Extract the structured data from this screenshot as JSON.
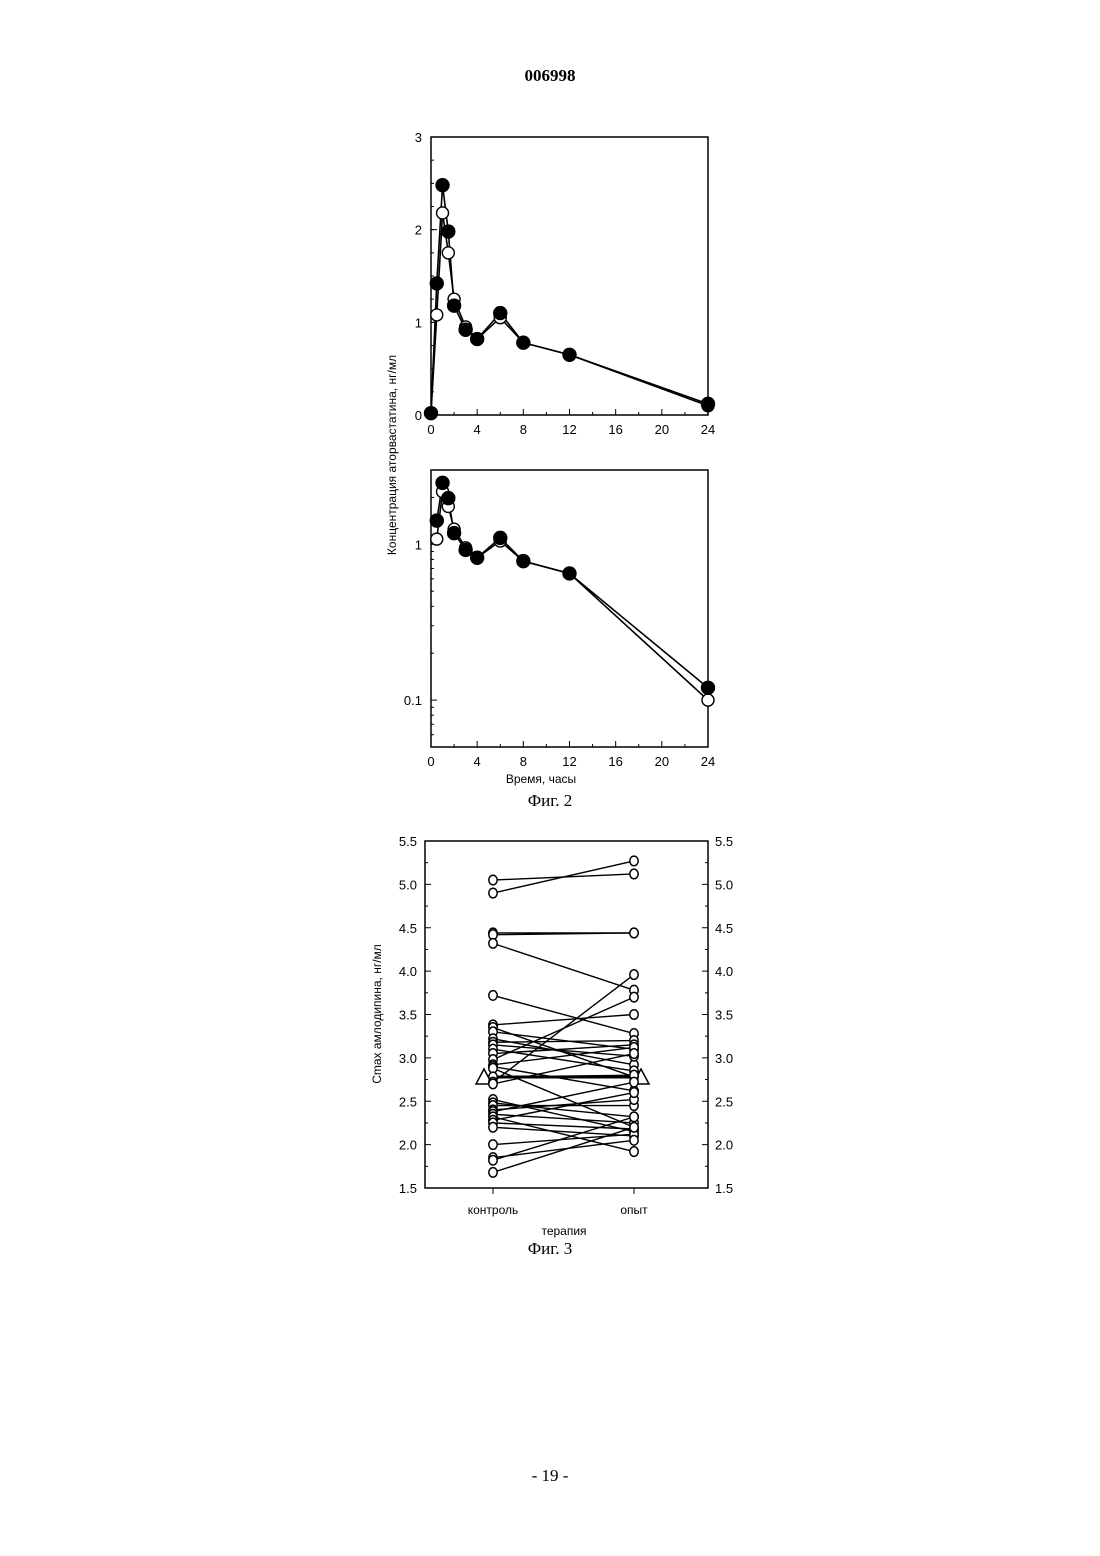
{
  "header": {
    "doc_number": "006998"
  },
  "footer": {
    "page_label": "- 19 -"
  },
  "figure2": {
    "caption": "Фиг. 2",
    "ylabel": "Концентрация аторвастатина, нг/мл",
    "xlabel": "Время, часы"
  },
  "figure3": {
    "caption": "Фиг. 3",
    "ylabel": "Cmax амлодипина, нг/мл",
    "xlabel": "терапия"
  },
  "chart_data": [
    {
      "type": "line",
      "scale": "linear",
      "xlabel": "",
      "ylabel": "Концентрация аторвастатина, нг/мл",
      "xlim": [
        0,
        24
      ],
      "ylim": [
        0,
        3
      ],
      "xticks": [
        0,
        4,
        8,
        12,
        16,
        20,
        24
      ],
      "yticks": [
        0,
        1,
        2,
        3
      ],
      "x": [
        0,
        0.5,
        1,
        1.5,
        2,
        3,
        4,
        6,
        8,
        12,
        24
      ],
      "series": [
        {
          "marker": "filled-circle",
          "values": [
            0.02,
            1.42,
            2.48,
            1.98,
            1.18,
            0.92,
            0.82,
            1.1,
            0.78,
            0.65,
            0.12
          ]
        },
        {
          "marker": "open-circle",
          "values": [
            0.02,
            1.08,
            2.18,
            1.75,
            1.25,
            0.95,
            0.82,
            1.05,
            0.78,
            0.65,
            0.1
          ]
        }
      ]
    },
    {
      "type": "line",
      "scale": "log",
      "xlabel": "Время, часы",
      "ylabel": "Концентрация аторвастатина, нг/мл",
      "xlim": [
        0,
        24
      ],
      "ylim": [
        0.05,
        3
      ],
      "xticks": [
        0,
        4,
        8,
        12,
        16,
        20,
        24
      ],
      "yticks": [
        0.1,
        1
      ],
      "x": [
        0.5,
        1,
        1.5,
        2,
        3,
        4,
        6,
        8,
        12,
        24
      ],
      "series": [
        {
          "marker": "filled-circle",
          "values": [
            1.42,
            2.48,
            1.98,
            1.18,
            0.92,
            0.82,
            1.1,
            0.78,
            0.65,
            0.12
          ]
        },
        {
          "marker": "open-circle",
          "values": [
            1.08,
            2.18,
            1.75,
            1.25,
            0.95,
            0.82,
            1.05,
            0.78,
            0.65,
            0.1
          ]
        }
      ]
    },
    {
      "type": "scatter",
      "xlabel": "терапия",
      "ylabel": "Cmax амлодипина, нг/мл",
      "categories": [
        "контроль",
        "опыт"
      ],
      "ylim": [
        1.5,
        5.5
      ],
      "yticks": [
        1.5,
        2.0,
        2.5,
        3.0,
        3.5,
        4.0,
        4.5,
        5.0,
        5.5
      ],
      "mean_marker": "triangle",
      "means": [
        2.78,
        2.78
      ],
      "pairs": [
        [
          5.05,
          5.12
        ],
        [
          4.9,
          5.27
        ],
        [
          4.44,
          4.44
        ],
        [
          4.42,
          4.44
        ],
        [
          4.32,
          3.78
        ],
        [
          3.72,
          3.28
        ],
        [
          3.38,
          3.5
        ],
        [
          3.35,
          2.78
        ],
        [
          3.3,
          3.1
        ],
        [
          3.22,
          2.92
        ],
        [
          3.18,
          3.2
        ],
        [
          3.15,
          3.02
        ],
        [
          3.1,
          2.85
        ],
        [
          3.05,
          3.15
        ],
        [
          2.98,
          3.7
        ],
        [
          2.92,
          3.12
        ],
        [
          2.9,
          2.62
        ],
        [
          2.88,
          2.2
        ],
        [
          2.78,
          2.8
        ],
        [
          2.72,
          3.96
        ],
        [
          2.7,
          3.05
        ],
        [
          2.52,
          2.15
        ],
        [
          2.48,
          2.32
        ],
        [
          2.45,
          2.45
        ],
        [
          2.4,
          2.52
        ],
        [
          2.38,
          2.72
        ],
        [
          2.35,
          2.25
        ],
        [
          2.32,
          1.92
        ],
        [
          2.28,
          2.6
        ],
        [
          2.25,
          2.18
        ],
        [
          2.2,
          2.1
        ],
        [
          2.0,
          2.12
        ],
        [
          1.85,
          2.05
        ],
        [
          1.82,
          2.32
        ],
        [
          1.68,
          2.2
        ]
      ]
    }
  ]
}
